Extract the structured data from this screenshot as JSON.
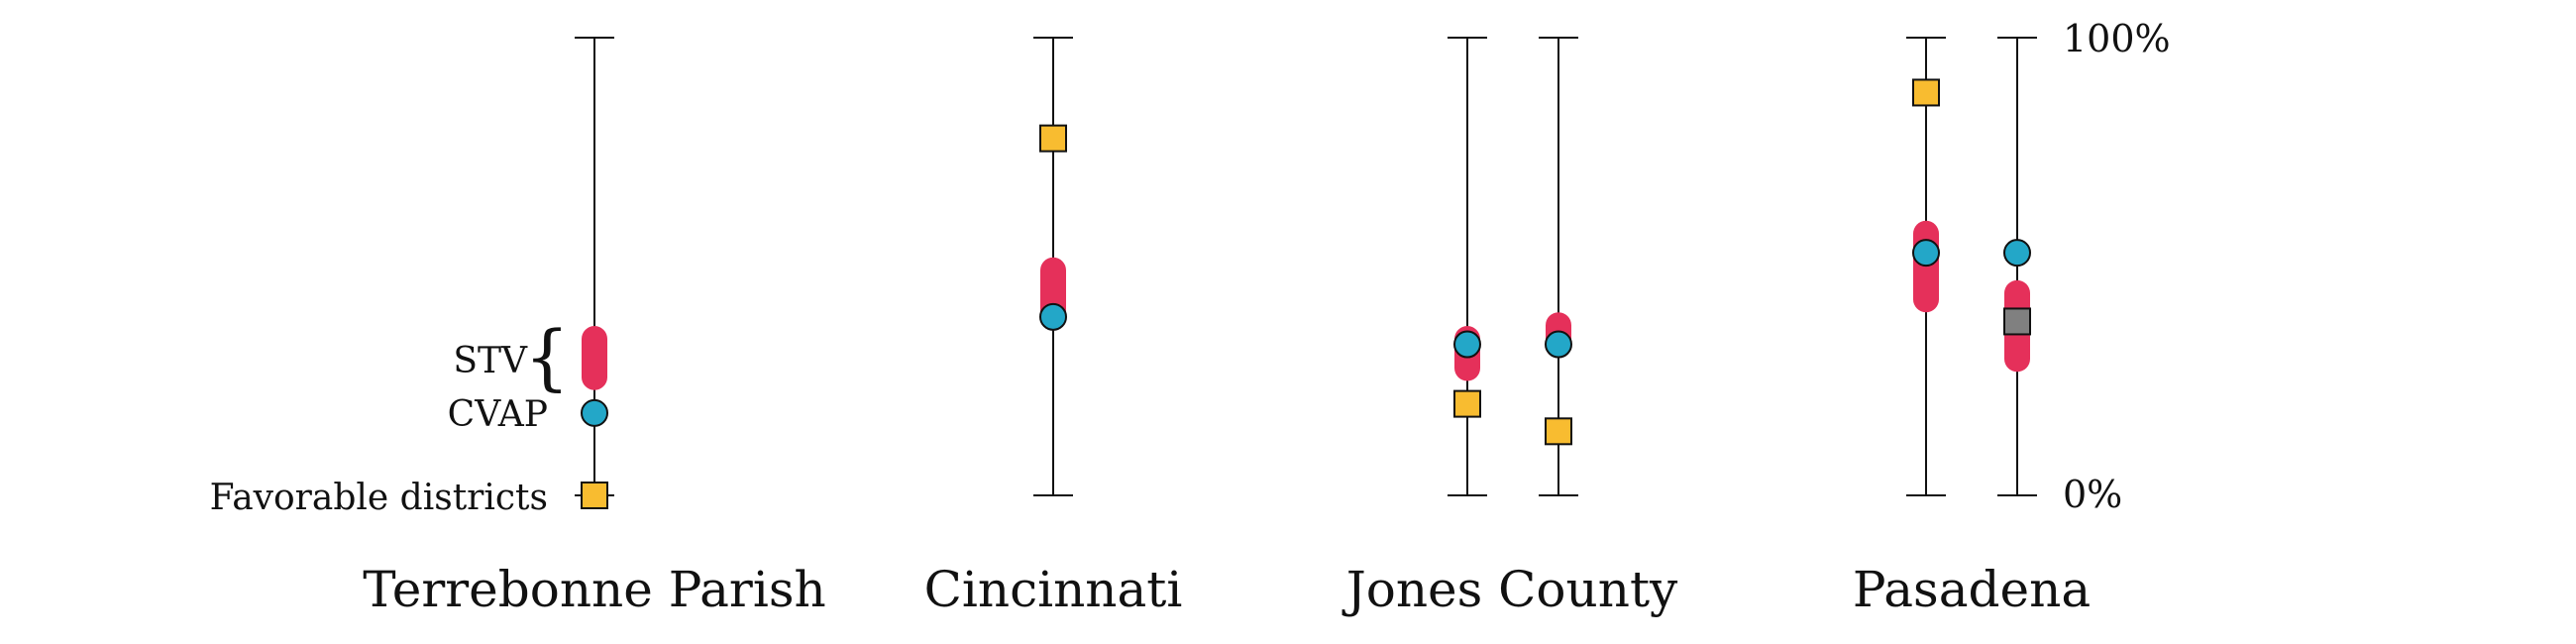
{
  "chart_data": {
    "type": "range",
    "ylim": [
      0,
      100
    ],
    "yticks": [
      "0%",
      "100%"
    ],
    "legend": {
      "stv": "STV",
      "cvap": "CVAP",
      "favorable": "Favorable districts"
    },
    "colors": {
      "stv": "#E5305A",
      "cvap": "#23A7C8",
      "favorable": "#F8BC30",
      "favorable_neutral": "#808080",
      "axis": "#111111"
    },
    "groups": [
      {
        "name": "Terrebonne Parish",
        "columns": [
          {
            "stv": [
              23,
              37
            ],
            "cvap": 18,
            "favorable": 0,
            "favorable_color": "favorable"
          }
        ]
      },
      {
        "name": "Cincinnati",
        "columns": [
          {
            "stv": [
              36,
              52
            ],
            "cvap": 39,
            "favorable": 78,
            "favorable_color": "favorable"
          }
        ]
      },
      {
        "name": "Jones County",
        "columns": [
          {
            "stv": [
              25,
              37
            ],
            "cvap": 33,
            "favorable": 20,
            "favorable_color": "favorable"
          },
          {
            "stv": [
              30,
              40
            ],
            "cvap": 33,
            "favorable": 14,
            "favorable_color": "favorable"
          }
        ]
      },
      {
        "name": "Pasadena",
        "columns": [
          {
            "stv": [
              40,
              60
            ],
            "cvap": 53,
            "favorable": 88,
            "favorable_color": "favorable"
          },
          {
            "stv": [
              27,
              47
            ],
            "cvap": 53,
            "favorable": 38,
            "favorable_color": "favorable_neutral"
          }
        ]
      }
    ]
  }
}
